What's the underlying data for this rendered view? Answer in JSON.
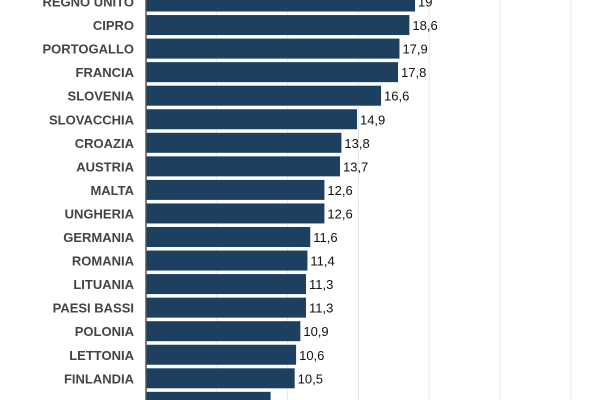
{
  "chart_data": {
    "type": "bar",
    "orientation": "horizontal",
    "categories": [
      "REGNO UNITO",
      "CIPRO",
      "PORTOGALLO",
      "FRANCIA",
      "SLOVENIA",
      "SLOVACCHIA",
      "CROAZIA",
      "AUSTRIA",
      "MALTA",
      "UNGHERIA",
      "GERMANIA",
      "ROMANIA",
      "LITUANIA",
      "PAESI BASSI",
      "POLONIA",
      "LETTONIA",
      "FINLANDIA",
      ""
    ],
    "values": [
      19,
      18.6,
      17.9,
      17.8,
      16.6,
      14.9,
      13.8,
      13.7,
      12.6,
      12.6,
      11.6,
      11.4,
      11.3,
      11.3,
      10.9,
      10.6,
      10.5,
      8.8
    ],
    "value_labels": [
      "19",
      "18,6",
      "17,9",
      "17,8",
      "16,6",
      "14,9",
      "13,8",
      "13,7",
      "12,6",
      "12,6",
      "11,6",
      "11,4",
      "11,3",
      "11,3",
      "10,9",
      "10,6",
      "10,5",
      ""
    ],
    "xlim": [
      0,
      32
    ],
    "gridlines": [
      5,
      10,
      15,
      20,
      25,
      30
    ],
    "grid": true,
    "colors": {
      "bar": "#1d4060",
      "grid": "#e6e6e6",
      "label": "#444444",
      "value": "#111111"
    }
  }
}
